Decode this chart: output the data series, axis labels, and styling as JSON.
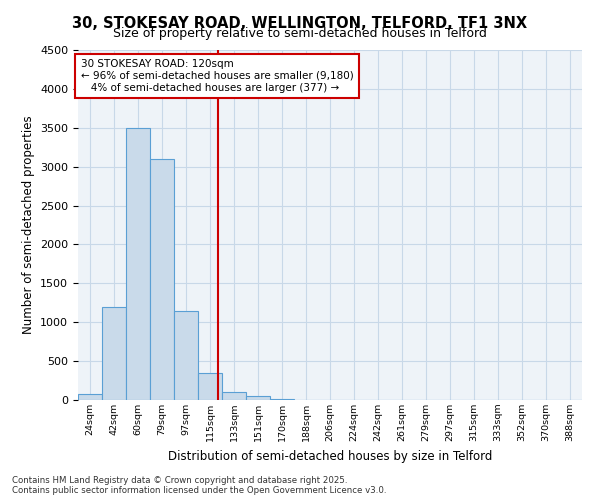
{
  "title1": "30, STOKESAY ROAD, WELLINGTON, TELFORD, TF1 3NX",
  "title2": "Size of property relative to semi-detached houses in Telford",
  "xlabel": "Distribution of semi-detached houses by size in Telford",
  "ylabel": "Number of semi-detached properties",
  "bar_values": [
    75,
    1200,
    3500,
    3100,
    1150,
    350,
    100,
    50,
    10,
    5,
    2,
    1,
    1,
    0,
    0,
    0,
    0,
    0,
    0,
    0,
    0
  ],
  "bin_labels": [
    "24sqm",
    "42sqm",
    "60sqm",
    "79sqm",
    "97sqm",
    "115sqm",
    "133sqm",
    "151sqm",
    "170sqm",
    "188sqm",
    "206sqm",
    "224sqm",
    "242sqm",
    "261sqm",
    "279sqm",
    "297sqm",
    "315sqm",
    "333sqm",
    "352sqm",
    "370sqm",
    "388sqm"
  ],
  "bin_edges": [
    15,
    33,
    51,
    69,
    87,
    105,
    123,
    141,
    159,
    177,
    195,
    213,
    231,
    249,
    267,
    285,
    303,
    321,
    339,
    357,
    375,
    393
  ],
  "property_size": 120,
  "property_label": "30 STOKESAY ROAD: 120sqm",
  "pct_smaller": 96,
  "n_smaller": 9180,
  "pct_larger": 4,
  "n_larger": 377,
  "bar_color": "#c9daea",
  "bar_edgecolor": "#5a9fd4",
  "vline_color": "#cc0000",
  "annotation_box_edgecolor": "#cc0000",
  "ylim": [
    0,
    4500
  ],
  "yticks": [
    0,
    500,
    1000,
    1500,
    2000,
    2500,
    3000,
    3500,
    4000,
    4500
  ],
  "grid_color": "#c8d8e8",
  "bg_color": "#eef3f8",
  "footer_line1": "Contains HM Land Registry data © Crown copyright and database right 2025.",
  "footer_line2": "Contains public sector information licensed under the Open Government Licence v3.0."
}
